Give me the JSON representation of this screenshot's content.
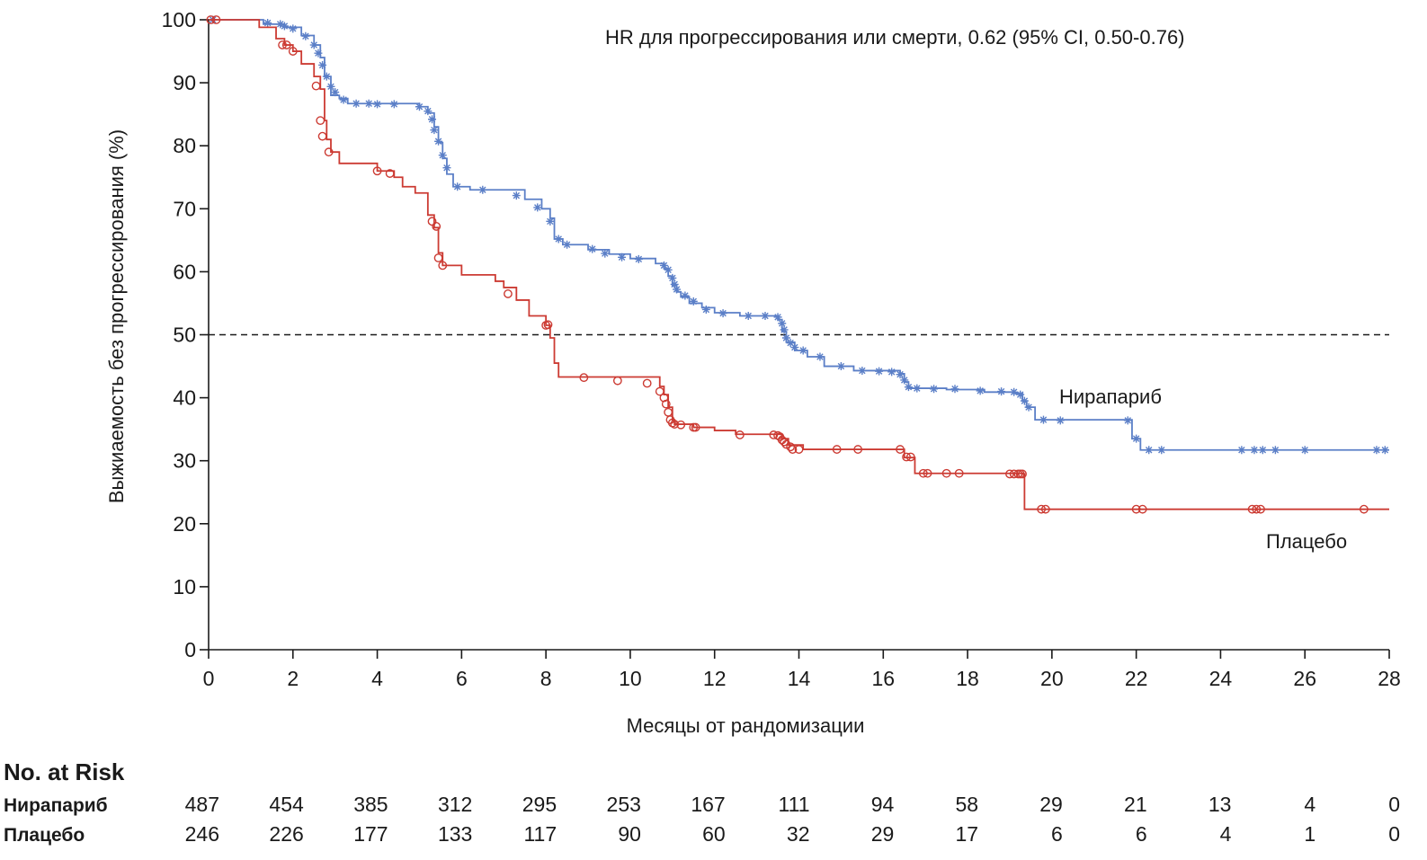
{
  "chart_data": {
    "type": "line",
    "subtype": "kaplan-meier",
    "ylabel": "Выжиаемость без прогрессирования (%)",
    "xlabel": "Месяцы от рандомизации",
    "annotation": "HR для прогрессирования или смерти, 0.62 (95% CI, 0.50-0.76)",
    "xlim": [
      0,
      28
    ],
    "ylim": [
      0,
      100
    ],
    "x_ticks": [
      0,
      2,
      4,
      6,
      8,
      10,
      12,
      14,
      16,
      18,
      20,
      22,
      24,
      26,
      28
    ],
    "y_ticks": [
      0,
      10,
      20,
      30,
      40,
      50,
      60,
      70,
      80,
      90,
      100
    ],
    "reference_line": {
      "y": 50,
      "style": "dashed"
    },
    "series": [
      {
        "name": "Нирапариб",
        "color": "#5b7fc7",
        "censor_marker": "star",
        "steps": [
          [
            0,
            100
          ],
          [
            1.3,
            99.3
          ],
          [
            1.8,
            98.8
          ],
          [
            2.2,
            97.5
          ],
          [
            2.5,
            96
          ],
          [
            2.65,
            94
          ],
          [
            2.75,
            91
          ],
          [
            2.9,
            88
          ],
          [
            3.1,
            87.5
          ],
          [
            3.3,
            86.7
          ],
          [
            5.0,
            86.2
          ],
          [
            5.2,
            85.2
          ],
          [
            5.35,
            83
          ],
          [
            5.45,
            80.5
          ],
          [
            5.55,
            78
          ],
          [
            5.65,
            75.5
          ],
          [
            5.8,
            73.5
          ],
          [
            6.2,
            73
          ],
          [
            7.5,
            71.5
          ],
          [
            7.9,
            70
          ],
          [
            8.1,
            68.5
          ],
          [
            8.2,
            65.2
          ],
          [
            8.4,
            64.3
          ],
          [
            9.0,
            63.5
          ],
          [
            9.5,
            62.8
          ],
          [
            10.0,
            62.1
          ],
          [
            10.6,
            61.3
          ],
          [
            10.8,
            60.5
          ],
          [
            10.9,
            59.3
          ],
          [
            11.0,
            57.8
          ],
          [
            11.1,
            56.8
          ],
          [
            11.2,
            56
          ],
          [
            11.4,
            55
          ],
          [
            11.7,
            54.3
          ],
          [
            12.0,
            53.5
          ],
          [
            12.6,
            53
          ],
          [
            13.5,
            52.4
          ],
          [
            13.6,
            50.5
          ],
          [
            13.7,
            48.8
          ],
          [
            13.9,
            47.5
          ],
          [
            14.2,
            46.5
          ],
          [
            14.6,
            45
          ],
          [
            15.3,
            44.3
          ],
          [
            16.4,
            43.8
          ],
          [
            16.5,
            42.5
          ],
          [
            16.6,
            41.5
          ],
          [
            17.5,
            41.3
          ],
          [
            18.4,
            40.9
          ],
          [
            19.1,
            40.7
          ],
          [
            19.3,
            39.5
          ],
          [
            19.4,
            38.5
          ],
          [
            19.6,
            36.5
          ],
          [
            21.9,
            33.5
          ],
          [
            22.1,
            31.7
          ],
          [
            28.0,
            31.7
          ]
        ],
        "censored": [
          [
            0.1,
            100
          ],
          [
            1.4,
            99.5
          ],
          [
            1.7,
            99.3
          ],
          [
            1.8,
            99
          ],
          [
            2.0,
            98.6
          ],
          [
            2.3,
            97.4
          ],
          [
            2.5,
            96
          ],
          [
            2.6,
            94.7
          ],
          [
            2.7,
            92.8
          ],
          [
            2.8,
            91
          ],
          [
            2.9,
            89.4
          ],
          [
            3.0,
            88.5
          ],
          [
            3.2,
            87.3
          ],
          [
            3.5,
            86.7
          ],
          [
            3.8,
            86.7
          ],
          [
            4.0,
            86.6
          ],
          [
            4.4,
            86.6
          ],
          [
            5.0,
            86.2
          ],
          [
            5.2,
            85.5
          ],
          [
            5.3,
            84.2
          ],
          [
            5.35,
            82.5
          ],
          [
            5.45,
            80.7
          ],
          [
            5.55,
            78.5
          ],
          [
            5.65,
            76.5
          ],
          [
            5.9,
            73.5
          ],
          [
            6.5,
            73
          ],
          [
            7.3,
            72.1
          ],
          [
            7.8,
            70.2
          ],
          [
            8.1,
            68
          ],
          [
            8.3,
            65.2
          ],
          [
            8.5,
            64.3
          ],
          [
            9.1,
            63.6
          ],
          [
            9.4,
            62.9
          ],
          [
            9.8,
            62.3
          ],
          [
            10.2,
            62
          ],
          [
            10.8,
            61
          ],
          [
            10.9,
            60.3
          ],
          [
            11.0,
            59
          ],
          [
            11.05,
            58
          ],
          [
            11.1,
            57.2
          ],
          [
            11.3,
            56.2
          ],
          [
            11.5,
            55.3
          ],
          [
            11.8,
            54
          ],
          [
            12.2,
            53.4
          ],
          [
            12.8,
            53
          ],
          [
            13.2,
            53
          ],
          [
            13.5,
            52.8
          ],
          [
            13.6,
            51.8
          ],
          [
            13.65,
            50.8
          ],
          [
            13.7,
            49.5
          ],
          [
            13.8,
            48.7
          ],
          [
            13.9,
            48
          ],
          [
            14.1,
            47.5
          ],
          [
            14.5,
            46.5
          ],
          [
            15.0,
            45
          ],
          [
            15.5,
            44.3
          ],
          [
            15.9,
            44.2
          ],
          [
            16.2,
            44.1
          ],
          [
            16.4,
            43.7
          ],
          [
            16.5,
            42.8
          ],
          [
            16.6,
            41.7
          ],
          [
            16.8,
            41.5
          ],
          [
            17.2,
            41.4
          ],
          [
            17.7,
            41.4
          ],
          [
            18.3,
            41.1
          ],
          [
            18.8,
            41
          ],
          [
            19.1,
            40.9
          ],
          [
            19.25,
            40.5
          ],
          [
            19.35,
            39.5
          ],
          [
            19.45,
            38.5
          ],
          [
            19.8,
            36.5
          ],
          [
            20.2,
            36.4
          ],
          [
            21.8,
            36.4
          ],
          [
            22.0,
            33.5
          ],
          [
            22.3,
            31.7
          ],
          [
            22.6,
            31.7
          ],
          [
            24.5,
            31.7
          ],
          [
            24.8,
            31.7
          ],
          [
            25.0,
            31.7
          ],
          [
            25.3,
            31.7
          ],
          [
            26.0,
            31.7
          ],
          [
            27.7,
            31.7
          ],
          [
            27.9,
            31.7
          ]
        ]
      },
      {
        "name": "Плацебо",
        "color": "#cc3b33",
        "censor_marker": "circle",
        "steps": [
          [
            0,
            100
          ],
          [
            1.2,
            98.8
          ],
          [
            1.6,
            97
          ],
          [
            1.8,
            96
          ],
          [
            2.0,
            95
          ],
          [
            2.2,
            93
          ],
          [
            2.5,
            91
          ],
          [
            2.65,
            89
          ],
          [
            2.75,
            84
          ],
          [
            2.8,
            81
          ],
          [
            2.9,
            79
          ],
          [
            3.1,
            77.2
          ],
          [
            4.0,
            76
          ],
          [
            4.4,
            75
          ],
          [
            4.6,
            73.5
          ],
          [
            4.9,
            72.5
          ],
          [
            5.2,
            69
          ],
          [
            5.35,
            67
          ],
          [
            5.45,
            63
          ],
          [
            5.55,
            61
          ],
          [
            6.0,
            59.5
          ],
          [
            6.8,
            58.5
          ],
          [
            7.0,
            57.5
          ],
          [
            7.3,
            55.5
          ],
          [
            7.6,
            53
          ],
          [
            8.0,
            51.5
          ],
          [
            8.1,
            49.5
          ],
          [
            8.2,
            45.5
          ],
          [
            8.3,
            43.3
          ],
          [
            10.7,
            41.8
          ],
          [
            10.8,
            40.5
          ],
          [
            10.9,
            38.5
          ],
          [
            11.0,
            36.5
          ],
          [
            11.05,
            35.8
          ],
          [
            11.5,
            35.3
          ],
          [
            12.0,
            34.8
          ],
          [
            12.5,
            34.2
          ],
          [
            13.6,
            33.5
          ],
          [
            13.75,
            32.5
          ],
          [
            14.1,
            31.8
          ],
          [
            16.5,
            30.5
          ],
          [
            16.75,
            28
          ],
          [
            19.3,
            27.9
          ],
          [
            19.35,
            22.3
          ],
          [
            28.0,
            22.3
          ]
        ],
        "censored": [
          [
            0.05,
            100
          ],
          [
            0.18,
            100
          ],
          [
            1.75,
            96
          ],
          [
            1.85,
            96
          ],
          [
            2.0,
            95
          ],
          [
            2.55,
            89.5
          ],
          [
            2.65,
            84
          ],
          [
            2.7,
            81.5
          ],
          [
            2.85,
            79
          ],
          [
            4.0,
            76
          ],
          [
            4.3,
            75.6
          ],
          [
            5.3,
            68
          ],
          [
            5.4,
            67.2
          ],
          [
            5.45,
            62.2
          ],
          [
            5.55,
            61
          ],
          [
            7.1,
            56.5
          ],
          [
            8.05,
            51.6
          ],
          [
            8.0,
            51.5
          ],
          [
            8.9,
            43.2
          ],
          [
            9.7,
            42.7
          ],
          [
            10.4,
            42.3
          ],
          [
            10.7,
            41
          ],
          [
            10.8,
            40
          ],
          [
            10.85,
            39
          ],
          [
            10.9,
            37.7
          ],
          [
            10.95,
            36.5
          ],
          [
            11.0,
            36
          ],
          [
            11.05,
            35.8
          ],
          [
            11.2,
            35.7
          ],
          [
            11.5,
            35.3
          ],
          [
            11.55,
            35.3
          ],
          [
            12.6,
            34.1
          ],
          [
            13.4,
            34.1
          ],
          [
            13.5,
            34
          ],
          [
            13.55,
            33.8
          ],
          [
            13.6,
            33.3
          ],
          [
            13.65,
            33
          ],
          [
            13.7,
            32.6
          ],
          [
            13.8,
            32.2
          ],
          [
            13.85,
            31.8
          ],
          [
            14.0,
            31.8
          ],
          [
            14.9,
            31.8
          ],
          [
            15.4,
            31.8
          ],
          [
            16.4,
            31.8
          ],
          [
            16.55,
            30.6
          ],
          [
            16.65,
            30.6
          ],
          [
            16.95,
            28
          ],
          [
            17.05,
            28
          ],
          [
            17.5,
            28
          ],
          [
            17.8,
            28
          ],
          [
            19.0,
            27.9
          ],
          [
            19.1,
            27.9
          ],
          [
            19.2,
            27.9
          ],
          [
            19.25,
            27.9
          ],
          [
            19.3,
            27.9
          ],
          [
            19.75,
            22.3
          ],
          [
            19.85,
            22.3
          ],
          [
            22.0,
            22.3
          ],
          [
            22.15,
            22.3
          ],
          [
            24.75,
            22.3
          ],
          [
            24.85,
            22.3
          ],
          [
            24.95,
            22.3
          ],
          [
            27.4,
            22.3
          ]
        ]
      }
    ],
    "curve_labels": [
      "Нирапариб",
      "Плацебо"
    ],
    "risk_table": {
      "title": "No. at Risk",
      "rows": [
        {
          "name": "Нирапариб",
          "values": [
            "487",
            "454",
            "385",
            "312",
            "295",
            "253",
            "167",
            "111",
            "94",
            "58",
            "29",
            "21",
            "13",
            "4",
            "0"
          ]
        },
        {
          "name": "Плацебо",
          "values": [
            "246",
            "226",
            "177",
            "133",
            "117",
            "90",
            "60",
            "32",
            "29",
            "17",
            "6",
            "6",
            "4",
            "1",
            "0"
          ]
        }
      ]
    }
  }
}
